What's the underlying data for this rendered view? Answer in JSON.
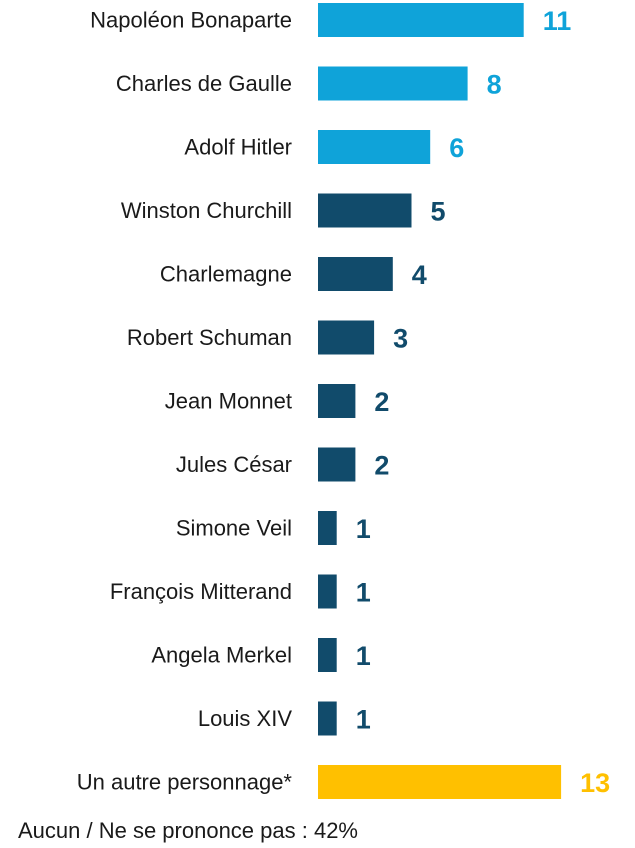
{
  "chart_data": {
    "type": "bar",
    "orientation": "horizontal",
    "categories": [
      "Napoléon Bonaparte",
      "Charles de Gaulle",
      "Adolf Hitler",
      "Winston Churchill",
      "Charlemagne",
      "Robert Schuman",
      "Jean Monnet",
      "Jules César",
      "Simone Veil",
      "François Mitterand",
      "Angela Merkel",
      "Louis XIV",
      "Un autre personnage*"
    ],
    "values": [
      11,
      8,
      6,
      5,
      4,
      3,
      2,
      2,
      1,
      1,
      1,
      1,
      13
    ],
    "value_labels": [
      "11",
      "8",
      "6",
      "5",
      "4",
      "3",
      "2",
      "2",
      "1",
      "1",
      "1",
      "1",
      "13"
    ],
    "bar_colors": [
      "#0fa3d9",
      "#0fa3d9",
      "#0fa3d9",
      "#114b6b",
      "#114b6b",
      "#114b6b",
      "#114b6b",
      "#114b6b",
      "#114b6b",
      "#114b6b",
      "#114b6b",
      "#114b6b",
      "#ffc000"
    ],
    "title": "",
    "xlabel": "",
    "ylabel": "",
    "xlim": [
      0,
      13
    ],
    "grid": false,
    "legend": "none"
  },
  "footnote": "Aucun / Ne se prononce pas : 42%"
}
